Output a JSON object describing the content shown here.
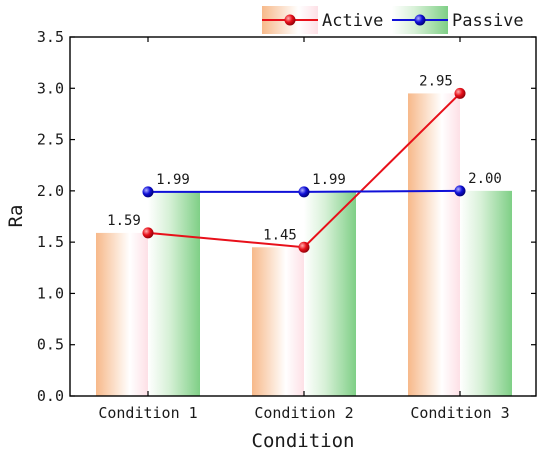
{
  "chart_data": {
    "type": "bar",
    "categories": [
      "Condition 1",
      "Condition 2",
      "Condition 3"
    ],
    "series": [
      {
        "name": "Active",
        "values": [
          1.59,
          1.45,
          2.95
        ],
        "color": "#e8101a",
        "bar_color": "#f7b98a",
        "label_texts": [
          "1.59",
          "1.45",
          "2.95"
        ]
      },
      {
        "name": "Passive",
        "values": [
          1.99,
          1.99,
          2.0
        ],
        "color": "#1010d8",
        "bar_color": "#7fcf86",
        "label_texts": [
          "1.99",
          "1.99",
          "2.00"
        ]
      }
    ],
    "overlay": "line-with-markers",
    "xlabel": "Condition",
    "ylabel": "Ra",
    "ylim": [
      0.0,
      3.5
    ],
    "yticks": [
      "0.0",
      "0.5",
      "1.0",
      "1.5",
      "2.0",
      "2.5",
      "3.0",
      "3.5"
    ],
    "grid": false,
    "legend_position": "top-right"
  }
}
